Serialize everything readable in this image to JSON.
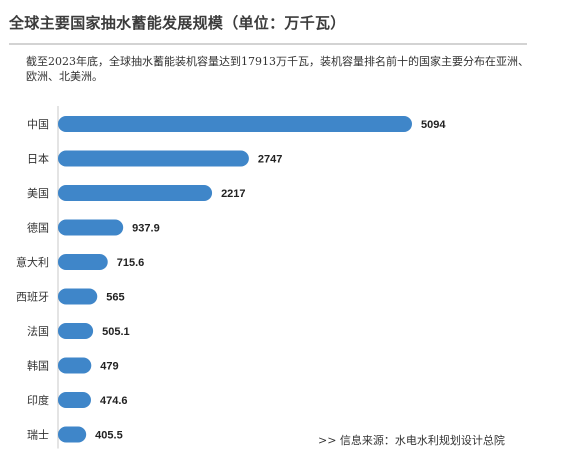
{
  "title": "全球主要国家抽水蓄能发展规模（单位：万千瓦）",
  "description": "截至2023年底，全球抽水蓄能装机容量达到17913万千瓦，装机容量排名前十的国家主要分布在亚洲、欧洲、北美洲。",
  "source": ">>  信息来源：水电水利规划设计总院",
  "colors": {
    "bar": "#3f86c9",
    "axis": "#c8c8c8"
  },
  "chart_data": {
    "type": "bar",
    "orientation": "horizontal",
    "unit": "万千瓦",
    "categories": [
      "中国",
      "日本",
      "美国",
      "德国",
      "意大利",
      "西班牙",
      "法国",
      "韩国",
      "印度",
      "瑞士"
    ],
    "values": [
      5094,
      2747,
      2217,
      937.9,
      715.6,
      565,
      505.1,
      479,
      474.6,
      405.5
    ],
    "value_labels": [
      "5094",
      "2747",
      "2217",
      "937.9",
      "715.6",
      "565",
      "505.1",
      "479",
      "474.6",
      "405.5"
    ]
  }
}
